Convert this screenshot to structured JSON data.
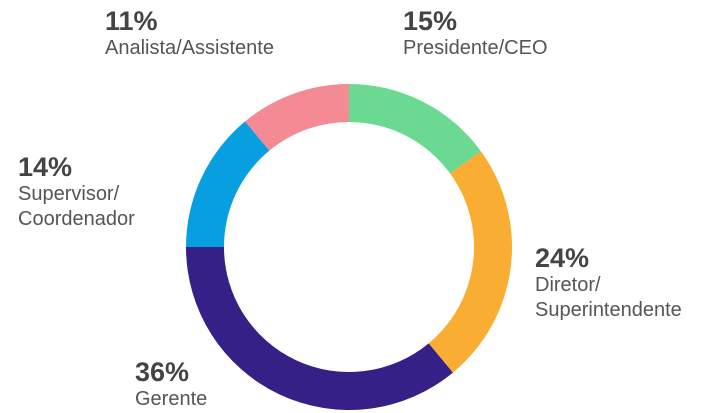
{
  "chart_data": {
    "type": "donut",
    "categories": [
      "Presidente/CEO",
      "Diretor/\nSuperintendente",
      "Gerente",
      "Supervisor/\nCoordenador",
      "Analista/Assistente"
    ],
    "values": [
      15,
      24,
      36,
      14,
      11
    ],
    "value_labels": [
      "15%",
      "24%",
      "36%",
      "14%",
      "11%"
    ],
    "colors": [
      "#6cd993",
      "#f9ae33",
      "#342086",
      "#079fe0",
      "#f48a93"
    ]
  }
}
